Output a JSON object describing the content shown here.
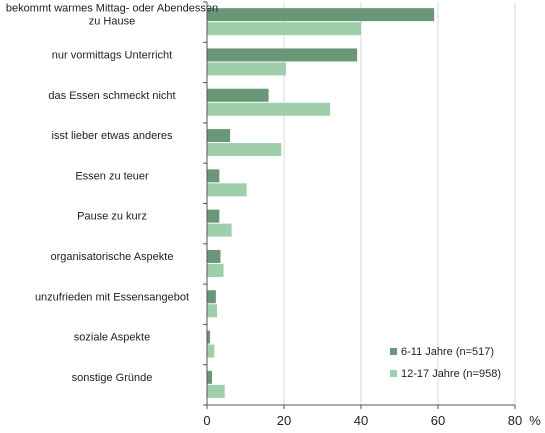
{
  "chart_data": {
    "type": "bar",
    "orientation": "horizontal",
    "categories": [
      [
        "bekommt warmes Mittag- oder Abendessen",
        "zu Hause"
      ],
      [
        "nur vormittags Unterricht"
      ],
      [
        "das Essen schmeckt nicht"
      ],
      [
        "isst lieber etwas anderes"
      ],
      [
        "Essen zu teuer"
      ],
      [
        "Pause zu kurz"
      ],
      [
        "organisatorische Aspekte"
      ],
      [
        "unzufrieden mit Essensangebot"
      ],
      [
        "soziale Aspekte"
      ],
      [
        "sonstige Gründe"
      ]
    ],
    "series": [
      {
        "name": "6-11 Jahre (n=517)",
        "color": "#6a9778",
        "values": [
          59,
          39,
          16,
          6,
          3.2,
          3.2,
          3.5,
          2.3,
          0.8,
          1.3
        ]
      },
      {
        "name": "12-17 Jahre (n=958)",
        "color": "#9ecfaa",
        "values": [
          40,
          20.5,
          32,
          19.3,
          10.3,
          6.4,
          4.3,
          2.6,
          1.9,
          4.6
        ]
      }
    ],
    "xlim": [
      0,
      80
    ],
    "xticks": [
      "0",
      "20",
      "40",
      "60",
      "80"
    ],
    "xunit": "%",
    "grid": "vertical",
    "legend_position": "bottom-right"
  }
}
